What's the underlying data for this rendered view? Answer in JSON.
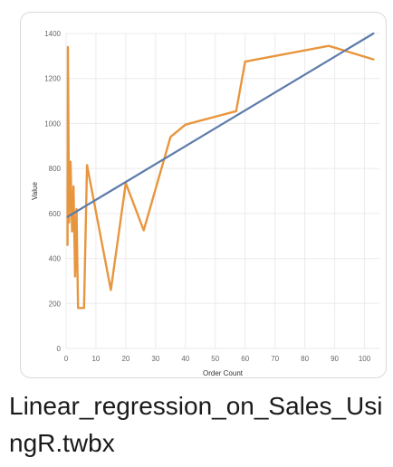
{
  "file": {
    "name": "Linear_regression_on_Sales_UsingR.twbx"
  },
  "colors": {
    "line": "#e8963e",
    "trend": "#5b7bab",
    "grid": "#ebebeb"
  },
  "chart_data": {
    "type": "line",
    "xlabel": "Order Count",
    "ylabel": "Value",
    "xlim": [
      0,
      105
    ],
    "ylim": [
      0,
      1400
    ],
    "xticks": [
      0,
      10,
      20,
      30,
      40,
      50,
      60,
      70,
      80,
      90,
      100
    ],
    "yticks": [
      0,
      200,
      400,
      600,
      800,
      1000,
      1200,
      1400
    ],
    "series": [
      {
        "kind": "line",
        "x": [
          0.5,
          0.6,
          1,
          1.5,
          2,
          2.5,
          3,
          3.5,
          4,
          6,
          7,
          15,
          20,
          26,
          35,
          40,
          57,
          60,
          88,
          103
        ],
        "y": [
          460,
          1340,
          560,
          830,
          520,
          720,
          320,
          620,
          180,
          180,
          815,
          260,
          735,
          525,
          940,
          995,
          1055,
          1275,
          1345,
          1285
        ]
      },
      {
        "kind": "trend",
        "x": [
          0.5,
          103
        ],
        "y": [
          585,
          1400
        ]
      }
    ]
  }
}
